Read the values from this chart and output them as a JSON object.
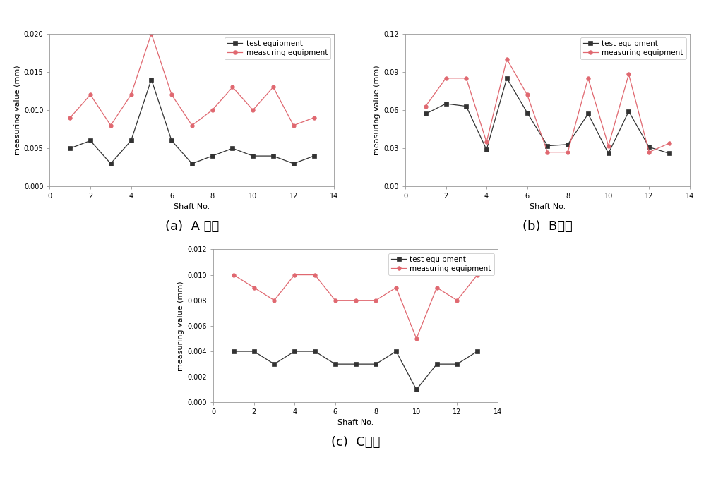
{
  "shaft_no": [
    1,
    2,
    3,
    4,
    5,
    6,
    7,
    8,
    9,
    10,
    11,
    12,
    13
  ],
  "plot_a": {
    "test_equipment": [
      0.005,
      0.006,
      0.003,
      0.006,
      0.014,
      0.006,
      0.003,
      0.004,
      0.005,
      0.004,
      0.004,
      0.003,
      0.004
    ],
    "measuring_equipment": [
      0.009,
      0.012,
      0.008,
      0.012,
      0.02,
      0.012,
      0.008,
      0.01,
      0.013,
      0.01,
      0.013,
      0.008,
      0.009
    ],
    "ylim": [
      0.0,
      0.02
    ],
    "yticks": [
      0.0,
      0.005,
      0.01,
      0.015,
      0.02
    ],
    "ylabel": "measuring value (mm)",
    "xlabel": "Shaft No.",
    "caption": "(a)  A 위치"
  },
  "plot_b": {
    "test_equipment": [
      0.057,
      0.065,
      0.063,
      0.029,
      0.085,
      0.058,
      0.032,
      0.033,
      0.057,
      0.026,
      0.059,
      0.031,
      0.026
    ],
    "measuring_equipment": [
      0.063,
      0.085,
      0.085,
      0.035,
      0.1,
      0.072,
      0.027,
      0.027,
      0.085,
      0.032,
      0.088,
      0.027,
      0.034
    ],
    "ylim": [
      0.0,
      0.12
    ],
    "yticks": [
      0.0,
      0.03,
      0.06,
      0.09,
      0.12
    ],
    "ylabel": "measuring value (mm)",
    "xlabel": "Shaft No.",
    "caption": "(b)  B위치"
  },
  "plot_c": {
    "test_equipment": [
      0.004,
      0.004,
      0.003,
      0.004,
      0.004,
      0.003,
      0.003,
      0.003,
      0.004,
      0.001,
      0.003,
      0.003,
      0.004
    ],
    "measuring_equipment": [
      0.01,
      0.009,
      0.008,
      0.01,
      0.01,
      0.008,
      0.008,
      0.008,
      0.009,
      0.005,
      0.009,
      0.008,
      0.01
    ],
    "ylim": [
      0.0,
      0.012
    ],
    "yticks": [
      0.0,
      0.002,
      0.004,
      0.006,
      0.008,
      0.01,
      0.012
    ],
    "ylabel": "measuring value (mm)",
    "xlabel": "Shaft No.",
    "caption": "(c)  C위치"
  },
  "test_color": "#333333",
  "measuring_color": "#e06870",
  "legend_test": "test equipment",
  "legend_meas": "measuring equipment",
  "fontsize_label": 8,
  "fontsize_tick": 7,
  "fontsize_title": 13,
  "fontsize_legend": 7.5
}
